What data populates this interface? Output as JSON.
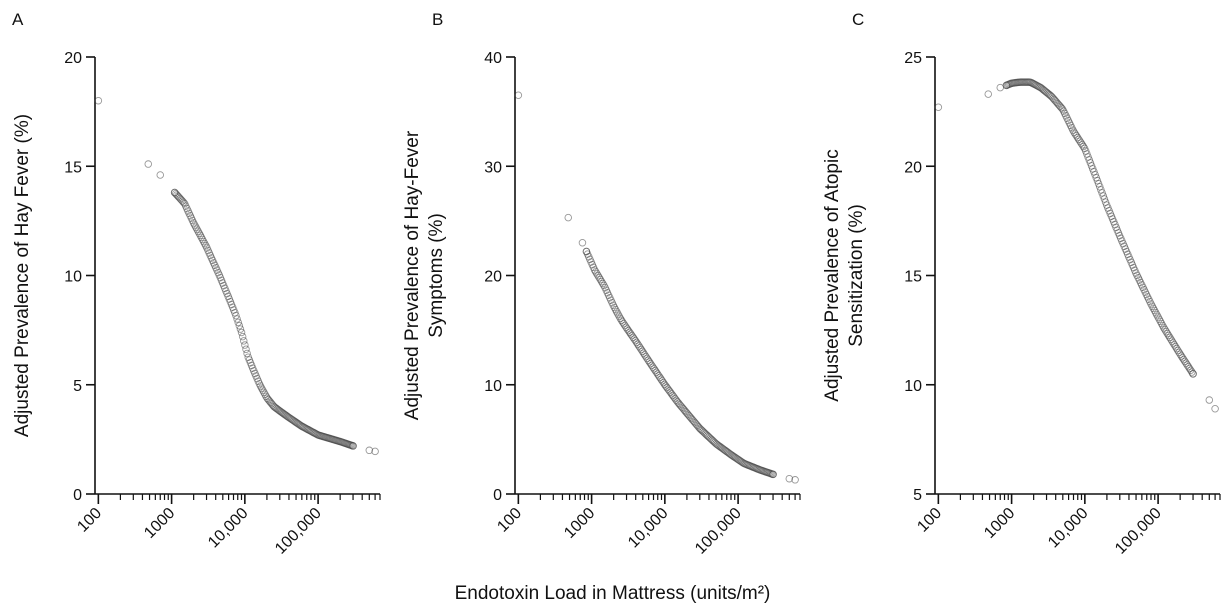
{
  "shared_xlabel": "Endotoxin Load in Mattress (units/m²)",
  "x_tick_labels": [
    "100",
    "1000",
    "10,000",
    "100,000"
  ],
  "chart_data": [
    {
      "type": "scatter",
      "panel": "A",
      "xlabel": "Endotoxin Load in Mattress (units/m²)",
      "ylabel": "Adjusted Prevalence of Hay Fever (%)",
      "x_scale": "log",
      "xlim": [
        90,
        700000
      ],
      "ylim": [
        0,
        20
      ],
      "y_ticks": [
        0,
        5,
        10,
        15,
        20
      ],
      "curve": [
        [
          100,
          18.0
        ],
        [
          480,
          15.1
        ],
        [
          700,
          14.6
        ],
        [
          1100,
          13.8
        ],
        [
          1500,
          13.3
        ],
        [
          2000,
          12.4
        ],
        [
          2500,
          11.8
        ],
        [
          3000,
          11.3
        ],
        [
          3500,
          10.8
        ],
        [
          4500,
          10.0
        ],
        [
          6000,
          9.0
        ],
        [
          7500,
          8.2
        ],
        [
          9000,
          7.4
        ],
        [
          11000,
          6.3
        ],
        [
          13000,
          5.7
        ],
        [
          16000,
          5.0
        ],
        [
          20000,
          4.4
        ],
        [
          25000,
          4.0
        ],
        [
          30000,
          3.8
        ],
        [
          40000,
          3.5
        ],
        [
          60000,
          3.1
        ],
        [
          100000,
          2.7
        ],
        [
          200000,
          2.4
        ],
        [
          300000,
          2.2
        ],
        [
          500000,
          2.0
        ],
        [
          600000,
          1.95
        ]
      ]
    },
    {
      "type": "scatter",
      "panel": "B",
      "xlabel": "Endotoxin Load in Mattress (units/m²)",
      "ylabel": "Adjusted Prevalence of Hay-Fever Symptoms (%)",
      "ylabel_lines": [
        "Adjusted Prevalence of Hay-Fever",
        "Symptoms (%)"
      ],
      "x_scale": "log",
      "xlim": [
        90,
        700000
      ],
      "ylim": [
        0,
        40
      ],
      "y_ticks": [
        0,
        10,
        20,
        30,
        40
      ],
      "curve": [
        [
          100,
          36.5
        ],
        [
          480,
          25.3
        ],
        [
          750,
          23.0
        ],
        [
          850,
          22.2
        ],
        [
          1100,
          20.5
        ],
        [
          1500,
          19.0
        ],
        [
          2000,
          17.2
        ],
        [
          2500,
          16.0
        ],
        [
          3000,
          15.2
        ],
        [
          4000,
          14.0
        ],
        [
          6000,
          12.2
        ],
        [
          10000,
          10.0
        ],
        [
          15000,
          8.4
        ],
        [
          20000,
          7.4
        ],
        [
          30000,
          6.0
        ],
        [
          50000,
          4.6
        ],
        [
          80000,
          3.6
        ],
        [
          120000,
          2.8
        ],
        [
          200000,
          2.2
        ],
        [
          300000,
          1.8
        ],
        [
          500000,
          1.4
        ],
        [
          600000,
          1.3
        ]
      ]
    },
    {
      "type": "scatter",
      "panel": "C",
      "xlabel": "Endotoxin Load in Mattress (units/m²)",
      "ylabel": "Adjusted Prevalence of Atopic Sensitization (%)",
      "ylabel_lines": [
        "Adjusted Prevalence of Atopic",
        "Sensitization (%)"
      ],
      "x_scale": "log",
      "xlim": [
        90,
        700000
      ],
      "ylim": [
        5,
        25
      ],
      "y_ticks": [
        5,
        10,
        15,
        20,
        25
      ],
      "curve": [
        [
          100,
          22.7
        ],
        [
          480,
          23.3
        ],
        [
          700,
          23.6
        ],
        [
          850,
          23.7
        ],
        [
          1000,
          23.8
        ],
        [
          1300,
          23.85
        ],
        [
          1800,
          23.85
        ],
        [
          2500,
          23.6
        ],
        [
          3500,
          23.2
        ],
        [
          5000,
          22.6
        ],
        [
          7000,
          21.6
        ],
        [
          10000,
          20.8
        ],
        [
          15000,
          19.3
        ],
        [
          20000,
          18.2
        ],
        [
          30000,
          16.8
        ],
        [
          50000,
          15.1
        ],
        [
          80000,
          13.7
        ],
        [
          120000,
          12.6
        ],
        [
          200000,
          11.4
        ],
        [
          300000,
          10.5
        ],
        [
          500000,
          9.3
        ],
        [
          600000,
          8.9
        ]
      ]
    }
  ]
}
